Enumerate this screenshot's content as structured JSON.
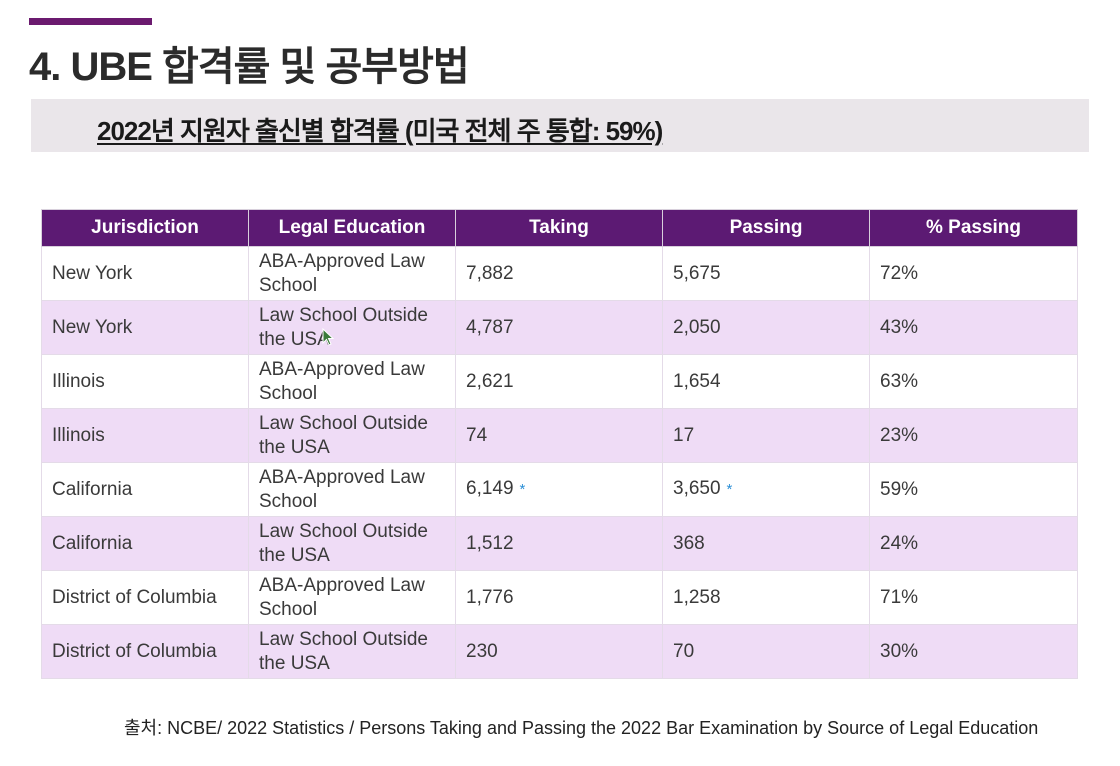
{
  "page": {
    "title": "4. UBE 합격률 및 공부방법",
    "subtitle": "2022년 지원자 출신별 합격률 (미국 전체 주 통합: 59%)",
    "source": "출처: NCBE/ 2022 Statistics / Persons Taking and Passing the 2022 Bar Examination by Source of Legal Education"
  },
  "colors": {
    "accent": "#6b1a6f",
    "header_bg": "#5c1a73",
    "row_alt": "#efdcf6",
    "asterisk": "#2b8fd6"
  },
  "table": {
    "headers": [
      "Jurisdiction",
      "Legal Education",
      "Taking",
      "Passing",
      "% Passing"
    ],
    "rows": [
      {
        "jurisdiction": "New York",
        "education": "ABA-Approved Law School",
        "taking": "7,882",
        "taking_note": "",
        "passing": "5,675",
        "passing_note": "",
        "percent": "72%"
      },
      {
        "jurisdiction": "New York",
        "education": "Law School Outside the USA",
        "taking": "4,787",
        "taking_note": "",
        "passing": "2,050",
        "passing_note": "",
        "percent": "43%"
      },
      {
        "jurisdiction": "Illinois",
        "education": "ABA-Approved Law School",
        "taking": "2,621",
        "taking_note": "",
        "passing": "1,654",
        "passing_note": "",
        "percent": "63%"
      },
      {
        "jurisdiction": "Illinois",
        "education": "Law School Outside the USA",
        "taking": "74",
        "taking_note": "",
        "passing": "17",
        "passing_note": "",
        "percent": "23%"
      },
      {
        "jurisdiction": "California",
        "education": "ABA-Approved Law School",
        "taking": "6,149",
        "taking_note": "*",
        "passing": "3,650",
        "passing_note": "*",
        "percent": "59%"
      },
      {
        "jurisdiction": "California",
        "education": "Law School Outside the USA",
        "taking": "1,512",
        "taking_note": "",
        "passing": "368",
        "passing_note": "",
        "percent": "24%"
      },
      {
        "jurisdiction": "District of Columbia",
        "education": "ABA-Approved Law School",
        "taking": "1,776",
        "taking_note": "",
        "passing": "1,258",
        "passing_note": "",
        "percent": "71%"
      },
      {
        "jurisdiction": "District of Columbia",
        "education": "Law School Outside the USA",
        "taking": "230",
        "taking_note": "",
        "passing": "70",
        "passing_note": "",
        "percent": "30%"
      }
    ]
  },
  "cursor": {
    "icon": "mouse-pointer-icon"
  }
}
